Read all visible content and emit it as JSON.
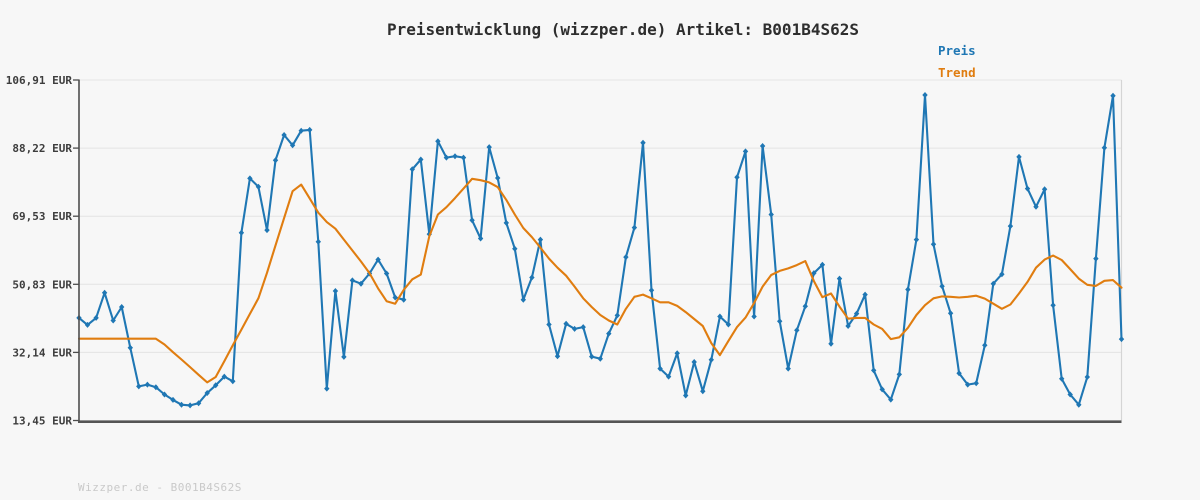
{
  "footer": {
    "watermark": "Wizzper.de - B001B4S62S"
  },
  "chart_data": {
    "type": "line",
    "title": "Preisentwicklung (wizzper.de) Artikel: B001B4S62S",
    "xlabel": "",
    "ylabel": "",
    "ylim": [
      13.45,
      106.91
    ],
    "grid": true,
    "legend_position": "top-right",
    "y_ticks": [
      "106,91 EUR",
      "88,22 EUR",
      "69,53 EUR",
      "50,83 EUR",
      "32,14 EUR",
      "13,45 EUR"
    ],
    "y_tick_values": [
      106.91,
      88.22,
      69.53,
      50.83,
      32.14,
      13.45
    ],
    "colors": {
      "background": "#f7f7f7",
      "grid": "#e4e4e4",
      "axis": "#4d4d4d",
      "bottom_axis": "#555555",
      "right_border": "#d5d5d5",
      "preis": "#1f77b4",
      "trend": "#e07d10",
      "title_text": "#2e2e2e",
      "tick_text": "#3d3d3d",
      "watermark_text": "#c9c9c9"
    },
    "series": [
      {
        "name": "Preis",
        "color": "#1f77b4",
        "marker": "diamond",
        "values": [
          41.6,
          39.7,
          41.6,
          48.5,
          40.9,
          44.6,
          33.4,
          22.8,
          23.3,
          22.6,
          20.6,
          19.1,
          17.8,
          17.6,
          18.2,
          21.0,
          23.1,
          25.5,
          24.2,
          65.0,
          79.9,
          77.6,
          65.7,
          84.9,
          91.8,
          89.0,
          93.0,
          93.2,
          62.5,
          22.2,
          49.0,
          30.9,
          51.9,
          51.0,
          53.8,
          57.6,
          53.8,
          47.2,
          46.6,
          82.4,
          85.1,
          64.6,
          90.1,
          85.6,
          86.0,
          85.6,
          68.4,
          63.4,
          88.5,
          80.0,
          67.7,
          60.6,
          46.6,
          52.7,
          63.1,
          39.8,
          31.1,
          40.0,
          38.6,
          39.1,
          31.0,
          30.4,
          37.3,
          42.3,
          58.3,
          66.4,
          89.7,
          49.2,
          27.7,
          25.5,
          31.9,
          20.3,
          29.5,
          21.5,
          30.1,
          42.0,
          39.8,
          80.2,
          87.3,
          42.0,
          88.8,
          70.0,
          40.7,
          27.7,
          38.2,
          44.8,
          53.9,
          56.2,
          34.5,
          52.4,
          39.4,
          42.8,
          48.0,
          27.2,
          22.0,
          19.2,
          26.1,
          49.4,
          63.1,
          102.8,
          61.8,
          50.3,
          42.9,
          26.4,
          23.3,
          23.7,
          34.1,
          51.0,
          53.6,
          66.8,
          85.8,
          77.1,
          72.1,
          76.9,
          45.1,
          24.9,
          20.6,
          17.8,
          25.4,
          57.9,
          88.3,
          102.6,
          35.8
        ]
      },
      {
        "name": "Trend",
        "color": "#e07d10",
        "marker": "none",
        "values": [
          35.9,
          35.9,
          35.9,
          35.9,
          35.9,
          35.9,
          35.9,
          35.9,
          35.9,
          35.9,
          34.3,
          32.2,
          30.2,
          28.1,
          26.0,
          23.9,
          25.4,
          29.7,
          34.1,
          38.4,
          42.7,
          47.0,
          54.0,
          61.5,
          69.0,
          76.4,
          78.2,
          74.4,
          70.5,
          67.9,
          66.1,
          63.1,
          60.1,
          57.1,
          53.9,
          49.7,
          46.2,
          45.5,
          49.3,
          52.2,
          53.5,
          64.0,
          70.0,
          72.0,
          74.5,
          77.1,
          79.8,
          79.4,
          78.8,
          77.5,
          74.0,
          70.0,
          66.3,
          63.8,
          60.9,
          57.9,
          55.4,
          53.2,
          50.2,
          47.0,
          44.6,
          42.4,
          40.9,
          39.8,
          44.1,
          47.4,
          48.0,
          47.0,
          45.9,
          45.9,
          44.9,
          43.2,
          41.3,
          39.4,
          34.7,
          31.4,
          35.3,
          39.1,
          41.7,
          45.7,
          50.2,
          53.4,
          54.5,
          55.2,
          56.1,
          57.2,
          51.7,
          47.3,
          48.3,
          44.7,
          41.4,
          41.6,
          41.6,
          39.8,
          38.6,
          35.8,
          36.3,
          38.9,
          42.4,
          45.1,
          47.0,
          47.5,
          47.4,
          47.2,
          47.4,
          47.7,
          46.9,
          45.5,
          44.1,
          45.3,
          48.3,
          51.5,
          55.4,
          57.6,
          58.7,
          57.5,
          55.0,
          52.4,
          50.7,
          50.4,
          51.8,
          52.0,
          49.9
        ]
      }
    ]
  }
}
